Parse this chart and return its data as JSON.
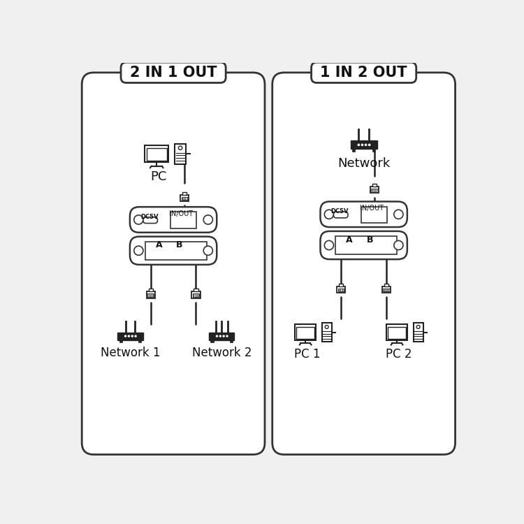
{
  "bg_color": "#f0f0f0",
  "panel_bg": "#ffffff",
  "border_color": "#333333",
  "line_color": "#222222",
  "text_color": "#111111",
  "left_title": "2 IN 1 OUT",
  "right_title": "1 IN 2 OUT",
  "left_top_label": "PC",
  "right_top_label": "Network",
  "left_bottom_labels": [
    "Network 1",
    "Network 2"
  ],
  "right_bottom_labels": [
    "PC 1",
    "PC 2"
  ],
  "device_label_in_out": "IN/OUT",
  "device_label_dc": "DC5V",
  "device_label_a": "A",
  "device_label_b": "B"
}
